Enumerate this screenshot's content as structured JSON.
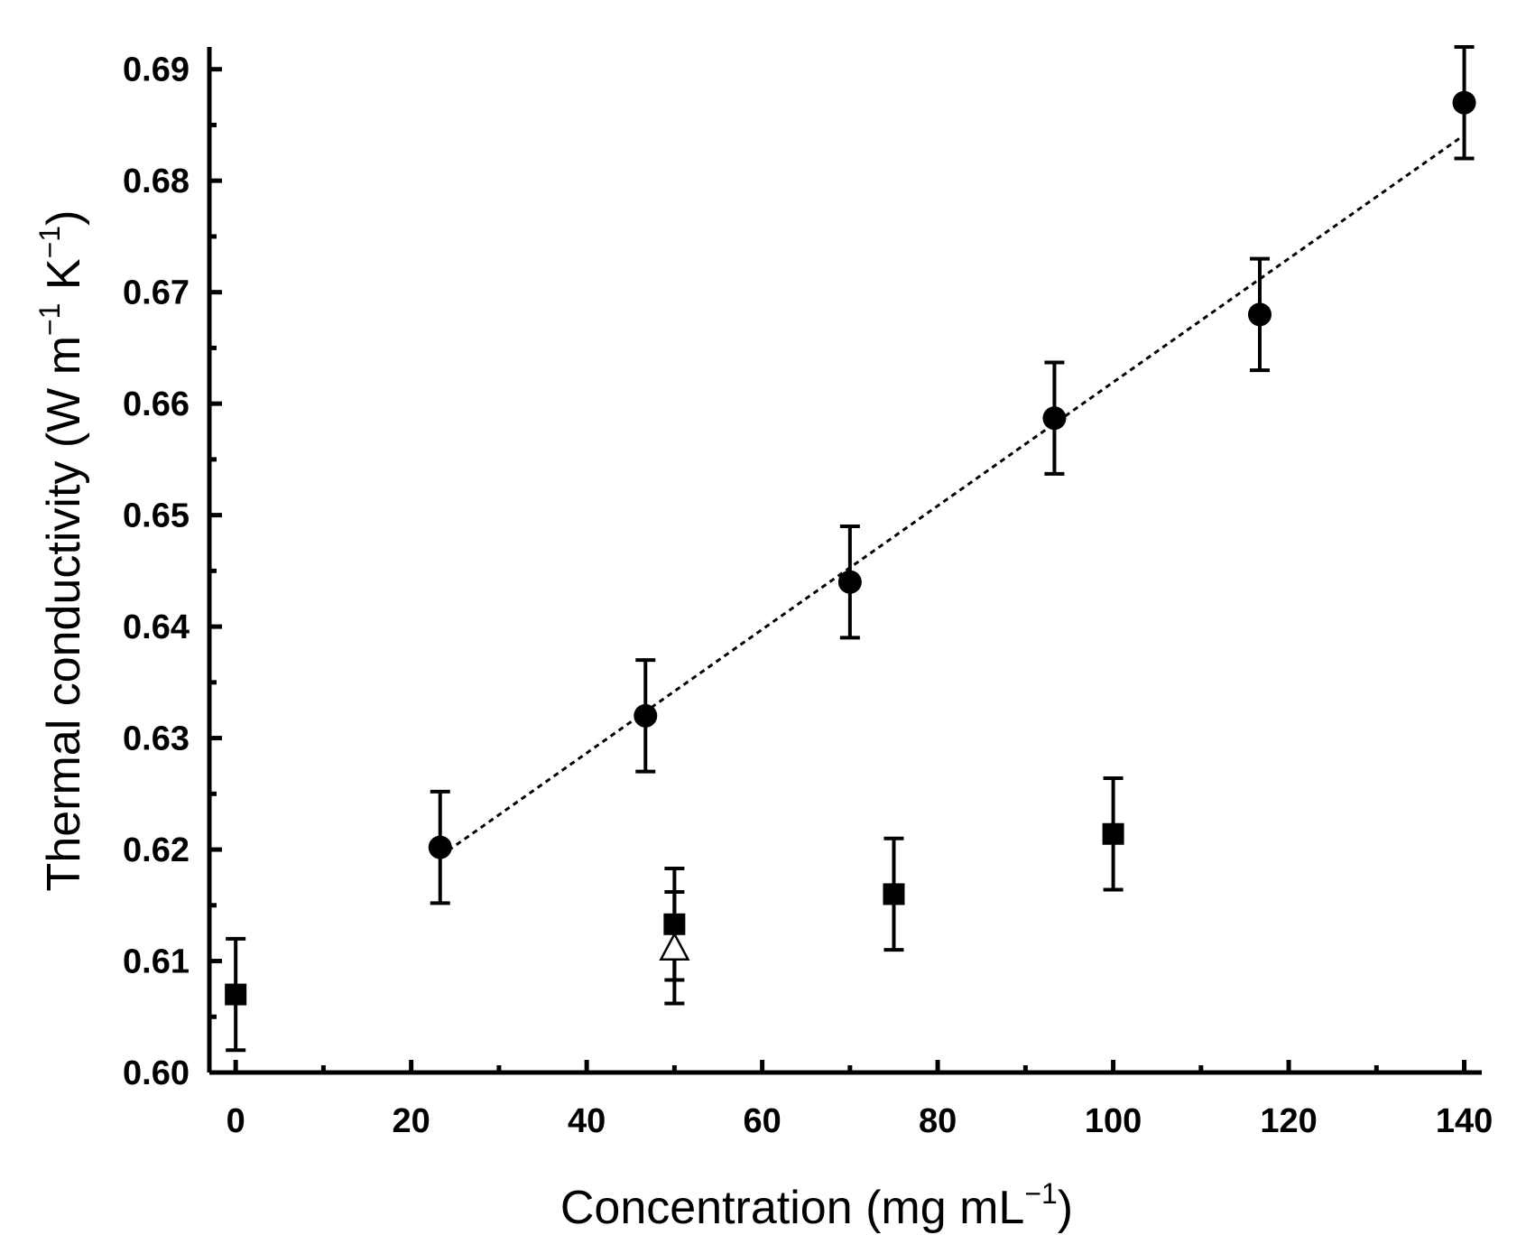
{
  "chart_data": {
    "type": "scatter",
    "title": "",
    "xlabel": "Concentration (mg mL",
    "xlabel_sup": "−1",
    "xlabel_end": ")",
    "ylabel_main": "Thermal conductivity (W m",
    "ylabel_sup1": "−1",
    "ylabel_mid": " K",
    "ylabel_sup2": "−1",
    "ylabel_end": ")",
    "xlim": [
      -3,
      142
    ],
    "ylim": [
      0.6,
      0.692
    ],
    "x_ticks": [
      0,
      20,
      40,
      60,
      80,
      100,
      120,
      140
    ],
    "x_tick_labels": [
      "0",
      "20",
      "40",
      "60",
      "80",
      "100",
      "120",
      "140"
    ],
    "x_minor_ticks": [
      10,
      30,
      50,
      70,
      90,
      110,
      130
    ],
    "y_ticks": [
      0.6,
      0.61,
      0.62,
      0.63,
      0.64,
      0.65,
      0.66,
      0.67,
      0.68,
      0.69
    ],
    "y_tick_labels": [
      "0.60",
      "0.61",
      "0.62",
      "0.63",
      "0.64",
      "0.65",
      "0.66",
      "0.67",
      "0.68",
      "0.69"
    ],
    "y_minor_ticks": [
      0.605,
      0.615,
      0.625,
      0.635,
      0.645,
      0.655,
      0.665,
      0.675,
      0.685
    ],
    "grid": false,
    "series": [
      {
        "name": "circles",
        "marker": "circle",
        "filled": true,
        "x": [
          23.3,
          46.7,
          70,
          93.3,
          116.7,
          140
        ],
        "y": [
          0.6202,
          0.632,
          0.644,
          0.6587,
          0.668,
          0.687
        ],
        "err": [
          0.005,
          0.005,
          0.005,
          0.005,
          0.005,
          0.005
        ]
      },
      {
        "name": "squares",
        "marker": "square",
        "filled": true,
        "x": [
          0,
          50,
          75,
          100
        ],
        "y": [
          0.607,
          0.6133,
          0.616,
          0.6214
        ],
        "err": [
          0.005,
          0.005,
          0.005,
          0.005
        ]
      },
      {
        "name": "triangle",
        "marker": "triangle",
        "filled": false,
        "x": [
          50
        ],
        "y": [
          0.6112
        ],
        "err": [
          0.005
        ]
      }
    ],
    "fit_line": {
      "style": "dotted",
      "x": [
        23.3,
        140
      ],
      "y": [
        0.6194,
        0.6841
      ]
    }
  }
}
